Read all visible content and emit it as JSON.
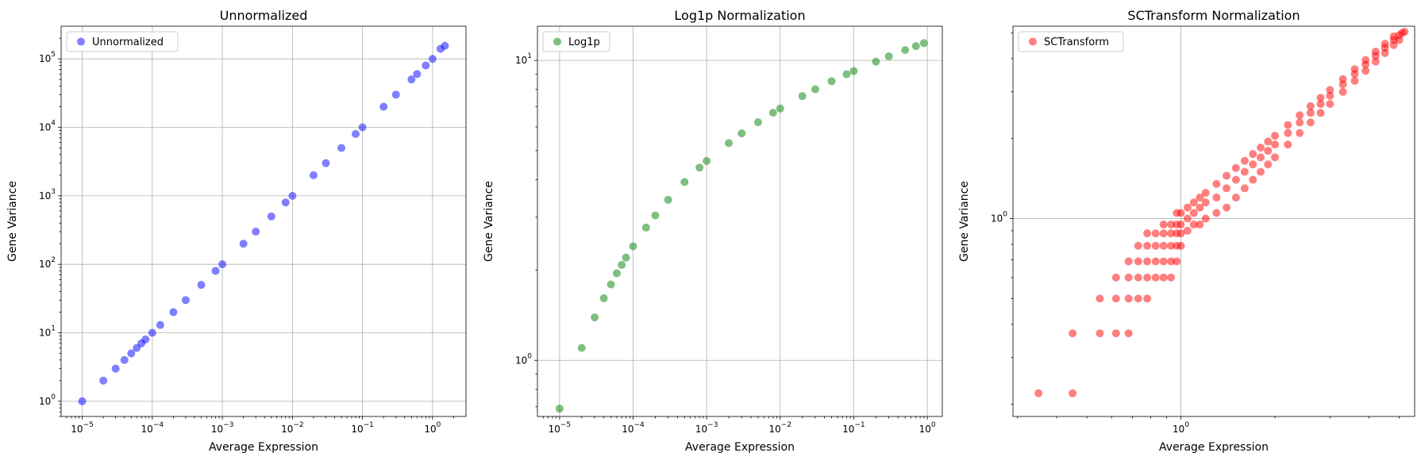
{
  "chart_data": [
    {
      "type": "scatter",
      "title": "Unnormalized",
      "xlabel": "Average Expression",
      "ylabel": "Gene Variance",
      "xscale": "log",
      "yscale": "log",
      "xlim": [
        5e-06,
        3
      ],
      "ylim": [
        0.6,
        300000
      ],
      "xticks": [
        "10^-5",
        "10^-4",
        "10^-3",
        "10^-2",
        "10^-1",
        "10^0"
      ],
      "yticks": [
        "10^0",
        "10^1",
        "10^2",
        "10^3",
        "10^4",
        "10^5"
      ],
      "grid": true,
      "legend": {
        "position": "top-left",
        "entries": [
          "Unnormalized"
        ]
      },
      "series": [
        {
          "name": "Unnormalized",
          "color": "#0000ff",
          "points": [
            [
              1e-05,
              1
            ],
            [
              2e-05,
              2
            ],
            [
              3e-05,
              3
            ],
            [
              4e-05,
              4
            ],
            [
              5e-05,
              5
            ],
            [
              6e-05,
              6
            ],
            [
              7e-05,
              7
            ],
            [
              8e-05,
              8
            ],
            [
              0.0001,
              10
            ],
            [
              0.00013,
              13
            ],
            [
              0.0002,
              20
            ],
            [
              0.0003,
              30
            ],
            [
              0.0005,
              50
            ],
            [
              0.0008,
              80
            ],
            [
              0.001,
              100
            ],
            [
              0.002,
              200
            ],
            [
              0.003,
              300
            ],
            [
              0.005,
              500
            ],
            [
              0.008,
              800
            ],
            [
              0.01,
              1000
            ],
            [
              0.02,
              2000
            ],
            [
              0.03,
              3000
            ],
            [
              0.05,
              5000
            ],
            [
              0.08,
              8000
            ],
            [
              0.1,
              10000
            ],
            [
              0.2,
              20000
            ],
            [
              0.3,
              30000
            ],
            [
              0.5,
              50000
            ],
            [
              0.6,
              60000
            ],
            [
              0.8,
              80000
            ],
            [
              1.0,
              100000
            ],
            [
              1.3,
              140000
            ],
            [
              1.5,
              155000
            ]
          ]
        }
      ]
    },
    {
      "type": "scatter",
      "title": "Log1p Normalization",
      "xlabel": "Average Expression",
      "ylabel": "Gene Variance",
      "xscale": "log",
      "yscale": "log",
      "xlim": [
        5e-06,
        1.6
      ],
      "ylim": [
        0.65,
        13
      ],
      "xticks": [
        "10^-5",
        "10^-4",
        "10^-3",
        "10^-2",
        "10^-1",
        "10^0"
      ],
      "yticks": [
        "10^0",
        "10^1"
      ],
      "grid": true,
      "legend": {
        "position": "top-left",
        "entries": [
          "Log1p"
        ]
      },
      "series": [
        {
          "name": "Log1p",
          "color": "#008000",
          "points": [
            [
              1e-05,
              0.69
            ],
            [
              2e-05,
              1.1
            ],
            [
              3e-05,
              1.39
            ],
            [
              4e-05,
              1.61
            ],
            [
              5e-05,
              1.79
            ],
            [
              6e-05,
              1.95
            ],
            [
              7e-05,
              2.08
            ],
            [
              8e-05,
              2.2
            ],
            [
              0.0001,
              2.4
            ],
            [
              0.00015,
              2.77
            ],
            [
              0.0002,
              3.04
            ],
            [
              0.0003,
              3.43
            ],
            [
              0.0005,
              3.93
            ],
            [
              0.0008,
              4.39
            ],
            [
              0.001,
              4.62
            ],
            [
              0.002,
              5.3
            ],
            [
              0.003,
              5.71
            ],
            [
              0.005,
              6.22
            ],
            [
              0.008,
              6.69
            ],
            [
              0.01,
              6.91
            ],
            [
              0.02,
              7.6
            ],
            [
              0.03,
              8.01
            ],
            [
              0.05,
              8.52
            ],
            [
              0.08,
              8.99
            ],
            [
              0.1,
              9.21
            ],
            [
              0.2,
              9.9
            ],
            [
              0.3,
              10.31
            ],
            [
              0.5,
              10.82
            ],
            [
              0.7,
              11.16
            ],
            [
              0.9,
              11.41
            ]
          ]
        }
      ]
    },
    {
      "type": "scatter",
      "title": "SCTransform Normalization",
      "xlabel": "Average Expression",
      "ylabel": "Gene Variance",
      "xscale": "log",
      "yscale": "log",
      "xlim": [
        0.29,
        5.6
      ],
      "ylim": [
        0.18,
        5.3
      ],
      "xticks": [
        "10^0"
      ],
      "yticks": [
        "10^0"
      ],
      "grid": true,
      "legend": {
        "position": "top-left",
        "entries": [
          "SCTransform"
        ]
      },
      "series": [
        {
          "name": "SCTransform",
          "color": "#ff0000",
          "points": [
            [
              0.35,
              0.22
            ],
            [
              0.45,
              0.22
            ],
            [
              0.45,
              0.37
            ],
            [
              0.55,
              0.37
            ],
            [
              0.55,
              0.5
            ],
            [
              0.62,
              0.37
            ],
            [
              0.62,
              0.5
            ],
            [
              0.62,
              0.6
            ],
            [
              0.68,
              0.5
            ],
            [
              0.68,
              0.6
            ],
            [
              0.68,
              0.69
            ],
            [
              0.68,
              0.37
            ],
            [
              0.73,
              0.5
            ],
            [
              0.73,
              0.6
            ],
            [
              0.73,
              0.69
            ],
            [
              0.73,
              0.79
            ],
            [
              0.78,
              0.5
            ],
            [
              0.78,
              0.6
            ],
            [
              0.78,
              0.69
            ],
            [
              0.78,
              0.79
            ],
            [
              0.78,
              0.88
            ],
            [
              0.83,
              0.6
            ],
            [
              0.83,
              0.69
            ],
            [
              0.83,
              0.79
            ],
            [
              0.83,
              0.88
            ],
            [
              0.88,
              0.6
            ],
            [
              0.88,
              0.69
            ],
            [
              0.88,
              0.79
            ],
            [
              0.88,
              0.88
            ],
            [
              0.88,
              0.95
            ],
            [
              0.93,
              0.6
            ],
            [
              0.93,
              0.69
            ],
            [
              0.93,
              0.79
            ],
            [
              0.93,
              0.88
            ],
            [
              0.93,
              0.95
            ],
            [
              0.97,
              0.69
            ],
            [
              0.97,
              0.79
            ],
            [
              0.97,
              0.88
            ],
            [
              0.97,
              0.95
            ],
            [
              0.97,
              1.05
            ],
            [
              1.0,
              0.79
            ],
            [
              1.0,
              0.88
            ],
            [
              1.0,
              0.95
            ],
            [
              1.0,
              1.05
            ],
            [
              1.05,
              0.9
            ],
            [
              1.05,
              1.0
            ],
            [
              1.05,
              1.1
            ],
            [
              1.1,
              0.95
            ],
            [
              1.1,
              1.05
            ],
            [
              1.1,
              1.15
            ],
            [
              1.15,
              0.95
            ],
            [
              1.15,
              1.1
            ],
            [
              1.15,
              1.2
            ],
            [
              1.2,
              1.0
            ],
            [
              1.2,
              1.15
            ],
            [
              1.2,
              1.25
            ],
            [
              1.3,
              1.05
            ],
            [
              1.3,
              1.2
            ],
            [
              1.3,
              1.35
            ],
            [
              1.4,
              1.1
            ],
            [
              1.4,
              1.3
            ],
            [
              1.4,
              1.45
            ],
            [
              1.5,
              1.2
            ],
            [
              1.5,
              1.4
            ],
            [
              1.5,
              1.55
            ],
            [
              1.6,
              1.3
            ],
            [
              1.6,
              1.5
            ],
            [
              1.6,
              1.65
            ],
            [
              1.7,
              1.4
            ],
            [
              1.7,
              1.6
            ],
            [
              1.7,
              1.75
            ],
            [
              1.8,
              1.5
            ],
            [
              1.8,
              1.7
            ],
            [
              1.8,
              1.85
            ],
            [
              1.9,
              1.6
            ],
            [
              1.9,
              1.8
            ],
            [
              1.9,
              1.95
            ],
            [
              2.0,
              1.7
            ],
            [
              2.0,
              1.9
            ],
            [
              2.0,
              2.05
            ],
            [
              2.2,
              1.9
            ],
            [
              2.2,
              2.1
            ],
            [
              2.2,
              2.25
            ],
            [
              2.4,
              2.1
            ],
            [
              2.4,
              2.3
            ],
            [
              2.4,
              2.45
            ],
            [
              2.6,
              2.3
            ],
            [
              2.6,
              2.5
            ],
            [
              2.6,
              2.65
            ],
            [
              2.8,
              2.5
            ],
            [
              2.8,
              2.7
            ],
            [
              2.8,
              2.85
            ],
            [
              3.0,
              2.7
            ],
            [
              3.0,
              2.9
            ],
            [
              3.0,
              3.05
            ],
            [
              3.3,
              3.0
            ],
            [
              3.3,
              3.2
            ],
            [
              3.3,
              3.35
            ],
            [
              3.6,
              3.3
            ],
            [
              3.6,
              3.5
            ],
            [
              3.6,
              3.65
            ],
            [
              3.9,
              3.6
            ],
            [
              3.9,
              3.8
            ],
            [
              3.9,
              3.95
            ],
            [
              4.2,
              3.9
            ],
            [
              4.2,
              4.1
            ],
            [
              4.2,
              4.25
            ],
            [
              4.5,
              4.2
            ],
            [
              4.5,
              4.4
            ],
            [
              4.5,
              4.55
            ],
            [
              4.8,
              4.5
            ],
            [
              4.8,
              4.7
            ],
            [
              4.8,
              4.85
            ],
            [
              5.0,
              4.7
            ],
            [
              5.0,
              4.9
            ],
            [
              5.1,
              5.0
            ],
            [
              5.2,
              5.05
            ]
          ]
        }
      ]
    }
  ]
}
